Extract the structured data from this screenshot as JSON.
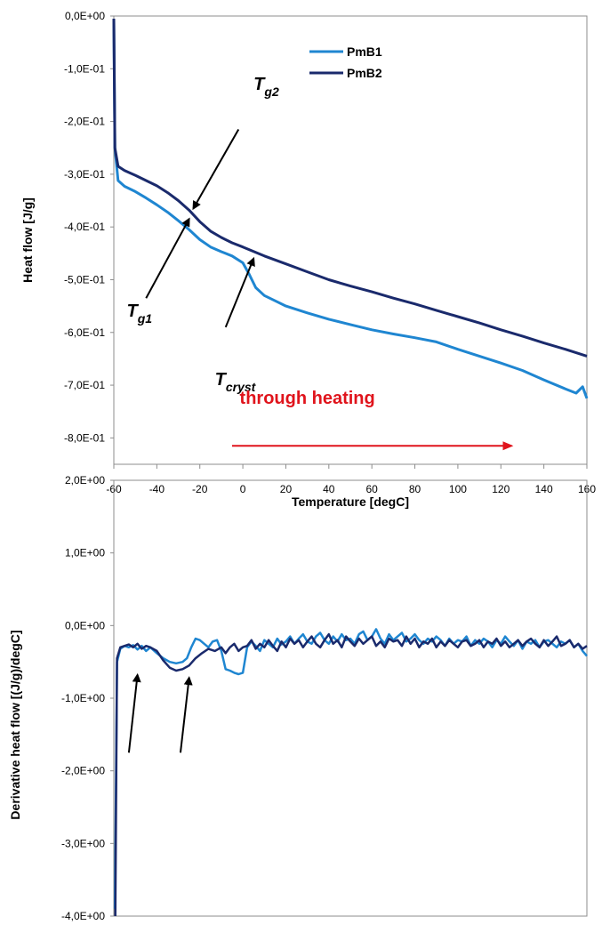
{
  "chart_data": [
    {
      "type": "line",
      "xlabel": "Temperature [degC]",
      "ylabel": "Heat flow [J/g]",
      "xlim": [
        -60,
        160
      ],
      "ylim": [
        -0.85,
        0.0
      ],
      "x_ticks": [
        "-60",
        "-40",
        "-20",
        "0",
        "20",
        "40",
        "60",
        "80",
        "100",
        "120",
        "140",
        "160"
      ],
      "y_ticks": [
        "0,0E+00",
        "-1,0E-01",
        "-2,0E-01",
        "-3,0E-01",
        "-4,0E-01",
        "-5,0E-01",
        "-6,0E-01",
        "-7,0E-01",
        "-8,0E-01"
      ],
      "legend": "top-center",
      "grid": false,
      "series": [
        {
          "name": "PmB1",
          "color": "#1f86d1",
          "x": [
            -60,
            -59.5,
            -58,
            -55,
            -50,
            -45,
            -40,
            -35,
            -30,
            -25,
            -20,
            -15,
            -10,
            -5,
            0,
            3,
            6,
            10,
            15,
            20,
            30,
            40,
            50,
            60,
            70,
            80,
            90,
            100,
            110,
            120,
            130,
            140,
            150,
            155,
            158,
            160
          ],
          "y": [
            -0.005,
            -0.25,
            -0.312,
            -0.323,
            -0.333,
            -0.345,
            -0.358,
            -0.372,
            -0.388,
            -0.405,
            -0.424,
            -0.438,
            -0.447,
            -0.455,
            -0.468,
            -0.49,
            -0.515,
            -0.53,
            -0.54,
            -0.55,
            -0.563,
            -0.575,
            -0.585,
            -0.595,
            -0.603,
            -0.61,
            -0.618,
            -0.632,
            -0.645,
            -0.658,
            -0.672,
            -0.69,
            -0.707,
            -0.715,
            -0.703,
            -0.725
          ]
        },
        {
          "name": "PmB2",
          "color": "#1a2a6c",
          "x": [
            -60,
            -59.5,
            -58,
            -55,
            -50,
            -45,
            -40,
            -35,
            -30,
            -25,
            -20,
            -15,
            -10,
            -5,
            0,
            10,
            20,
            30,
            40,
            50,
            60,
            70,
            80,
            90,
            100,
            110,
            120,
            130,
            140,
            150,
            160
          ],
          "y": [
            -0.005,
            -0.25,
            -0.285,
            -0.293,
            -0.302,
            -0.312,
            -0.322,
            -0.335,
            -0.35,
            -0.368,
            -0.39,
            -0.408,
            -0.42,
            -0.43,
            -0.438,
            -0.455,
            -0.47,
            -0.485,
            -0.5,
            -0.512,
            -0.523,
            -0.535,
            -0.546,
            -0.558,
            -0.57,
            -0.582,
            -0.595,
            -0.607,
            -0.62,
            -0.632,
            -0.645
          ]
        }
      ],
      "annotations": [
        {
          "text": "T",
          "sub": "g2",
          "x": 5,
          "y": -0.14
        },
        {
          "text": "T",
          "sub": "g1",
          "x": -54,
          "y": -0.57
        },
        {
          "text": "T",
          "sub": "cryst",
          "x": -13,
          "y": -0.7
        },
        {
          "text": "through heating",
          "x": 30,
          "y": -0.735,
          "color": "#e0141c"
        }
      ],
      "arrows": [
        {
          "from": [
            -2,
            -0.215
          ],
          "to": [
            -23,
            -0.365
          ],
          "color": "#000000"
        },
        {
          "from": [
            -45,
            -0.535
          ],
          "to": [
            -25,
            -0.385
          ],
          "color": "#000000"
        },
        {
          "from": [
            -8,
            -0.59
          ],
          "to": [
            5,
            -0.46
          ],
          "color": "#000000"
        },
        {
          "from": [
            -5,
            -0.815
          ],
          "to": [
            125,
            -0.815
          ],
          "color": "#e0141c"
        }
      ]
    },
    {
      "type": "line",
      "xlabel": "",
      "ylabel": "Derivative heat flow [(J/g)/degC]",
      "xlim": [
        -60,
        160
      ],
      "ylim": [
        -4.0,
        2.0
      ],
      "y_ticks": [
        "2,0E+00",
        "1,0E+00",
        "0,0E+00",
        "-1,0E+00",
        "-2,0E+00",
        "-3,0E+00",
        "-4,0E+00"
      ],
      "grid": false,
      "series": [
        {
          "name": "PmB1",
          "color": "#1f86d1",
          "x": [
            -59.5,
            -58.5,
            -57,
            -55,
            -53,
            -51,
            -49,
            -47,
            -45,
            -43,
            -40,
            -37,
            -34,
            -31,
            -28,
            -26,
            -24,
            -22,
            -20,
            -18,
            -16,
            -14,
            -12,
            -10,
            -8,
            -6,
            -4,
            -2,
            0,
            2,
            4,
            6,
            8,
            10,
            12,
            14,
            16,
            18,
            20,
            22,
            24,
            26,
            28,
            30,
            32,
            34,
            36,
            38,
            40,
            42,
            44,
            46,
            48,
            50,
            52,
            54,
            56,
            58,
            60,
            62,
            64,
            66,
            68,
            70,
            72,
            74,
            76,
            78,
            80,
            82,
            84,
            86,
            88,
            90,
            92,
            94,
            96,
            98,
            100,
            102,
            104,
            106,
            108,
            110,
            112,
            114,
            116,
            118,
            120,
            122,
            124,
            126,
            128,
            130,
            132,
            134,
            136,
            138,
            140,
            142,
            144,
            146,
            148,
            150,
            152,
            154,
            156,
            158,
            160
          ],
          "y": [
            -3.9,
            -0.5,
            -0.32,
            -0.28,
            -0.3,
            -0.27,
            -0.33,
            -0.28,
            -0.35,
            -0.3,
            -0.38,
            -0.45,
            -0.5,
            -0.52,
            -0.5,
            -0.45,
            -0.3,
            -0.18,
            -0.2,
            -0.25,
            -0.3,
            -0.22,
            -0.2,
            -0.35,
            -0.6,
            -0.62,
            -0.65,
            -0.67,
            -0.65,
            -0.3,
            -0.22,
            -0.28,
            -0.35,
            -0.2,
            -0.25,
            -0.3,
            -0.18,
            -0.26,
            -0.22,
            -0.15,
            -0.25,
            -0.18,
            -0.12,
            -0.22,
            -0.25,
            -0.15,
            -0.1,
            -0.2,
            -0.25,
            -0.15,
            -0.22,
            -0.12,
            -0.2,
            -0.18,
            -0.25,
            -0.12,
            -0.08,
            -0.2,
            -0.15,
            -0.05,
            -0.18,
            -0.25,
            -0.12,
            -0.2,
            -0.15,
            -0.1,
            -0.22,
            -0.18,
            -0.12,
            -0.2,
            -0.25,
            -0.18,
            -0.22,
            -0.15,
            -0.2,
            -0.28,
            -0.18,
            -0.25,
            -0.2,
            -0.22,
            -0.15,
            -0.28,
            -0.2,
            -0.25,
            -0.18,
            -0.22,
            -0.3,
            -0.2,
            -0.25,
            -0.15,
            -0.22,
            -0.28,
            -0.2,
            -0.32,
            -0.22,
            -0.25,
            -0.2,
            -0.3,
            -0.22,
            -0.2,
            -0.25,
            -0.3,
            -0.22,
            -0.25,
            -0.2,
            -0.3,
            -0.25,
            -0.35,
            -0.42
          ]
        },
        {
          "name": "PmB2",
          "color": "#1a2a6c",
          "x": [
            -59.3,
            -58.5,
            -57,
            -55,
            -53,
            -51,
            -49,
            -47,
            -45,
            -43,
            -40,
            -37,
            -34,
            -31,
            -28,
            -25,
            -22,
            -19,
            -16,
            -13,
            -10,
            -8,
            -6,
            -4,
            -2,
            0,
            2,
            4,
            6,
            8,
            10,
            12,
            14,
            16,
            18,
            20,
            22,
            24,
            26,
            28,
            30,
            32,
            34,
            36,
            38,
            40,
            42,
            44,
            46,
            48,
            50,
            52,
            54,
            56,
            58,
            60,
            62,
            64,
            66,
            68,
            70,
            72,
            74,
            76,
            78,
            80,
            82,
            84,
            86,
            88,
            90,
            92,
            94,
            96,
            98,
            100,
            102,
            104,
            106,
            108,
            110,
            112,
            114,
            116,
            118,
            120,
            122,
            124,
            126,
            128,
            130,
            132,
            134,
            136,
            138,
            140,
            142,
            144,
            146,
            148,
            150,
            152,
            154,
            156,
            158,
            160
          ],
          "y": [
            -4.0,
            -0.45,
            -0.3,
            -0.28,
            -0.26,
            -0.3,
            -0.25,
            -0.32,
            -0.28,
            -0.3,
            -0.35,
            -0.48,
            -0.58,
            -0.62,
            -0.6,
            -0.55,
            -0.45,
            -0.38,
            -0.32,
            -0.35,
            -0.3,
            -0.38,
            -0.3,
            -0.25,
            -0.35,
            -0.3,
            -0.28,
            -0.2,
            -0.32,
            -0.25,
            -0.3,
            -0.2,
            -0.28,
            -0.35,
            -0.22,
            -0.3,
            -0.18,
            -0.25,
            -0.2,
            -0.3,
            -0.22,
            -0.15,
            -0.25,
            -0.3,
            -0.2,
            -0.12,
            -0.25,
            -0.2,
            -0.3,
            -0.15,
            -0.22,
            -0.28,
            -0.18,
            -0.25,
            -0.2,
            -0.15,
            -0.28,
            -0.22,
            -0.3,
            -0.18,
            -0.22,
            -0.2,
            -0.28,
            -0.15,
            -0.25,
            -0.18,
            -0.3,
            -0.22,
            -0.25,
            -0.18,
            -0.3,
            -0.22,
            -0.28,
            -0.2,
            -0.25,
            -0.3,
            -0.22,
            -0.2,
            -0.28,
            -0.25,
            -0.2,
            -0.3,
            -0.22,
            -0.25,
            -0.18,
            -0.28,
            -0.22,
            -0.3,
            -0.25,
            -0.2,
            -0.28,
            -0.22,
            -0.18,
            -0.25,
            -0.3,
            -0.2,
            -0.28,
            -0.22,
            -0.15,
            -0.28,
            -0.25,
            -0.2,
            -0.3,
            -0.25,
            -0.32,
            -0.28
          ]
        }
      ],
      "arrows": [
        {
          "from": [
            -53,
            -1.75
          ],
          "to": [
            -49,
            -0.68
          ],
          "color": "#000000"
        },
        {
          "from": [
            -29,
            -1.75
          ],
          "to": [
            -25,
            -0.72
          ],
          "color": "#000000"
        }
      ]
    }
  ]
}
